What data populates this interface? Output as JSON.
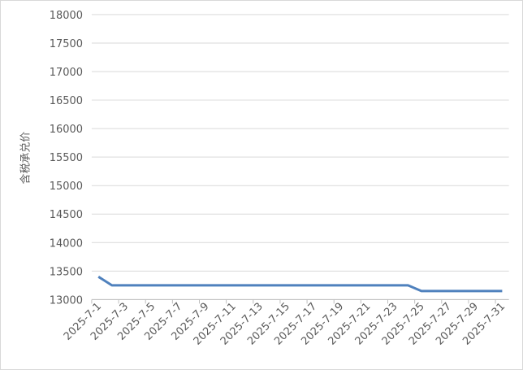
{
  "chart_data": {
    "type": "line",
    "title": "",
    "xlabel": "",
    "ylabel": "含税承兑价",
    "ylim": [
      13000,
      18000
    ],
    "yticks": [
      13000,
      13500,
      14000,
      14500,
      15000,
      15500,
      16000,
      16500,
      17000,
      17500,
      18000
    ],
    "grid": true,
    "legend": "none",
    "line_color": "#4f81bd",
    "categories": [
      "2025-7-1",
      "2025-7-2",
      "2025-7-3",
      "2025-7-4",
      "2025-7-5",
      "2025-7-6",
      "2025-7-7",
      "2025-7-8",
      "2025-7-9",
      "2025-7-10",
      "2025-7-11",
      "2025-7-12",
      "2025-7-13",
      "2025-7-14",
      "2025-7-15",
      "2025-7-16",
      "2025-7-17",
      "2025-7-18",
      "2025-7-19",
      "2025-7-20",
      "2025-7-21",
      "2025-7-22",
      "2025-7-23",
      "2025-7-24",
      "2025-7-25",
      "2025-7-26",
      "2025-7-27",
      "2025-7-28",
      "2025-7-29",
      "2025-7-30",
      "2025-7-31"
    ],
    "values": [
      13400,
      13250,
      13250,
      13250,
      13250,
      13250,
      13250,
      13250,
      13250,
      13250,
      13250,
      13250,
      13250,
      13250,
      13250,
      13250,
      13250,
      13250,
      13250,
      13250,
      13250,
      13250,
      13250,
      13250,
      13150,
      13150,
      13150,
      13150,
      13150,
      13150,
      13150
    ]
  }
}
